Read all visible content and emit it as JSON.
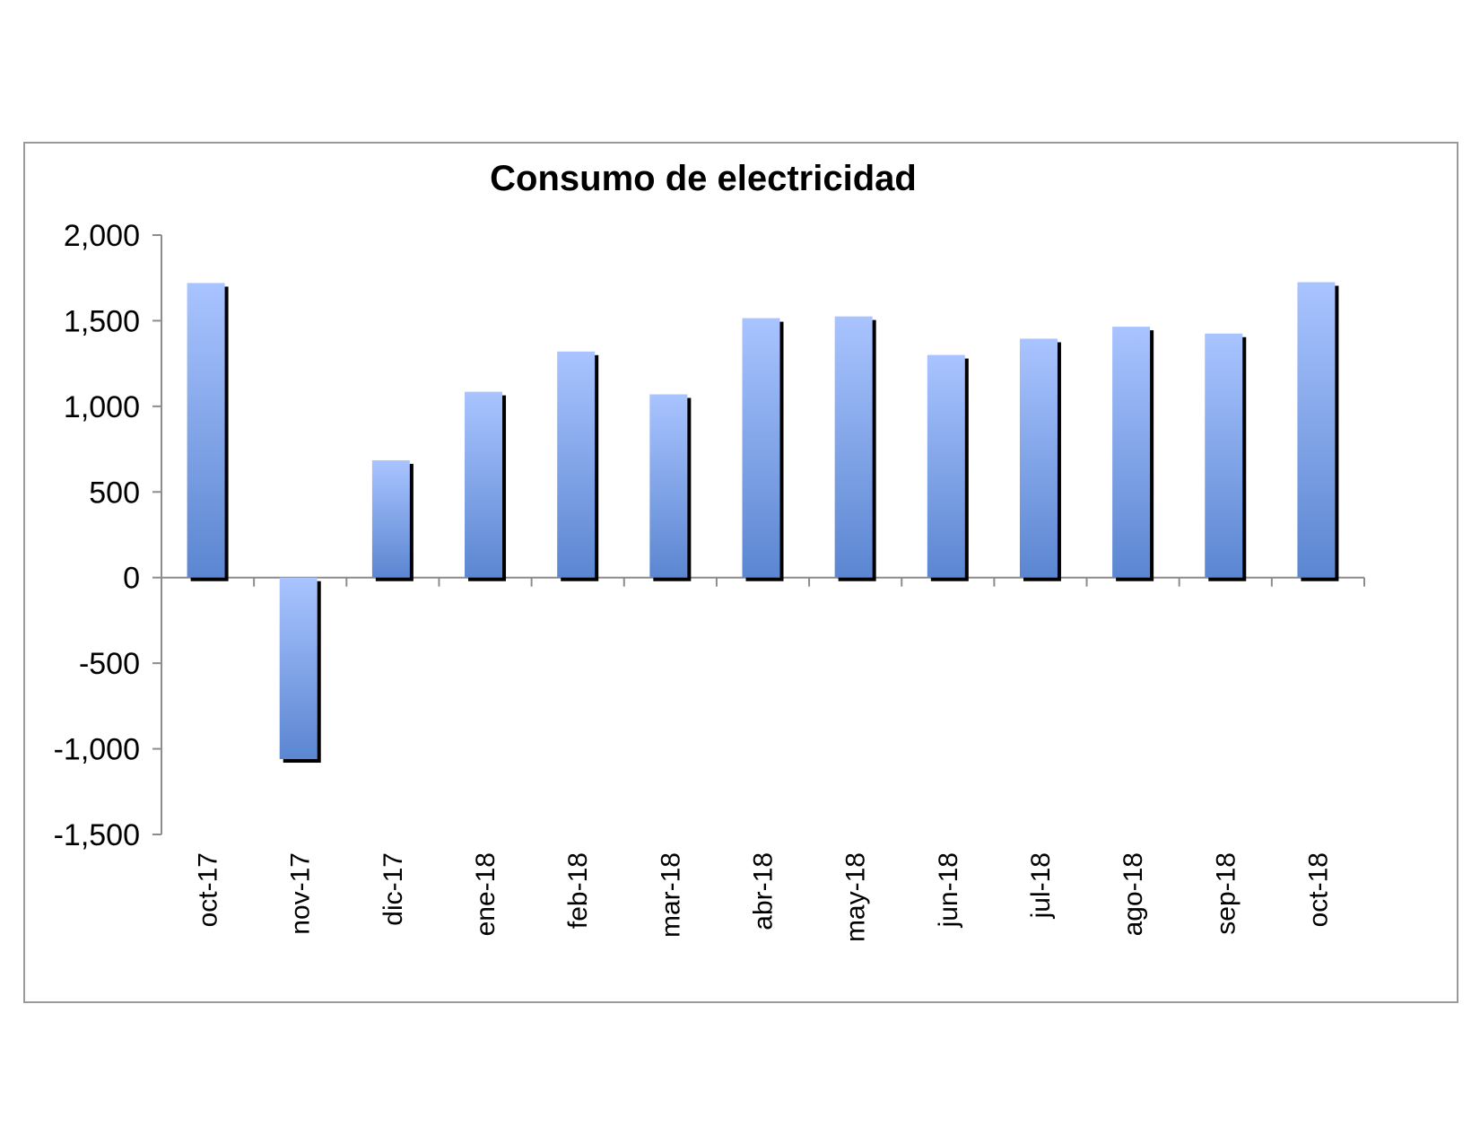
{
  "chart_data": {
    "type": "bar",
    "title": "Consumo de electricidad",
    "xlabel": "",
    "ylabel": "",
    "categories": [
      "oct-17",
      "nov-17",
      "dic-17",
      "ene-18",
      "feb-18",
      "mar-18",
      "abr-18",
      "may-18",
      "jun-18",
      "jul-18",
      "ago-18",
      "sep-18",
      "oct-18"
    ],
    "values": [
      1720,
      -1060,
      685,
      1085,
      1320,
      1070,
      1515,
      1525,
      1300,
      1395,
      1465,
      1425,
      1725
    ],
    "ylim": [
      -1500,
      2000
    ],
    "yticks": [
      2000,
      1500,
      1000,
      500,
      0,
      -500,
      -1000,
      -1500
    ],
    "ytick_labels": [
      "2,000",
      "1,500",
      "1,000",
      "500",
      "0",
      "-500",
      "-1,000",
      "-1,500"
    ],
    "grid": false,
    "legend": "none",
    "colors": {
      "bar_top": "#a9c4ff",
      "bar_bottom": "#5b86d1",
      "shadow": "#000000",
      "axis": "#8c8c8c"
    }
  }
}
